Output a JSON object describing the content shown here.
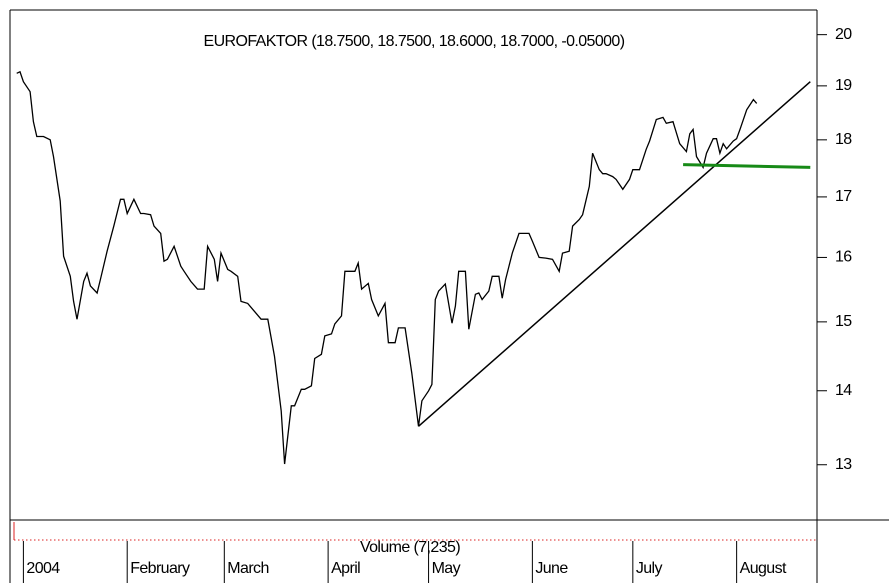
{
  "chart_data": {
    "type": "line",
    "title": "EUROFAKTOR (18.7500, 18.7500, 18.6000, 18.7000, -0.05000)",
    "color": "#000000",
    "log_scale": true,
    "x": [
      -2,
      -1,
      0,
      2,
      3,
      4,
      6,
      8,
      9,
      11,
      12,
      14,
      15,
      16,
      18,
      19,
      20,
      22,
      23,
      25,
      27,
      29,
      30,
      31,
      33,
      35,
      36,
      38,
      39,
      41,
      42,
      43,
      45,
      47,
      48,
      50,
      52,
      54,
      55,
      57,
      58,
      59,
      61,
      62,
      64,
      65,
      67,
      69,
      71,
      73,
      75,
      77,
      78,
      80,
      81,
      83,
      84,
      86,
      87,
      89,
      90,
      92,
      93,
      95,
      96,
      98,
      99,
      100,
      101,
      103,
      104,
      106,
      108,
      109,
      111,
      112,
      114,
      116,
      118,
      119,
      121,
      122,
      123,
      124,
      126,
      128,
      129,
      130,
      132,
      133,
      135,
      136,
      137,
      139,
      140,
      142,
      143,
      144,
      146,
      148,
      149,
      151,
      152,
      154,
      156,
      158,
      160,
      161,
      163,
      164,
      166,
      167,
      169,
      170,
      172,
      173,
      174,
      176,
      177,
      179,
      181,
      182,
      184,
      186,
      187,
      189,
      191,
      192,
      194,
      196,
      198,
      199,
      200,
      201,
      203,
      204,
      206,
      207,
      208,
      209,
      210,
      212,
      213,
      214,
      216,
      218,
      219
    ],
    "values": [
      19.24,
      19.27,
      19.08,
      18.89,
      18.33,
      18.06,
      18.06,
      18.0,
      17.7,
      16.93,
      16.02,
      15.7,
      15.31,
      15.04,
      15.62,
      15.75,
      15.55,
      15.44,
      15.65,
      16.1,
      16.51,
      16.96,
      16.96,
      16.72,
      16.96,
      16.72,
      16.72,
      16.7,
      16.51,
      16.39,
      15.94,
      15.97,
      16.18,
      15.86,
      15.78,
      15.62,
      15.5,
      15.5,
      16.18,
      15.97,
      15.62,
      16.07,
      15.81,
      15.78,
      15.7,
      15.31,
      15.28,
      15.16,
      15.04,
      15.04,
      14.49,
      13.72,
      13.01,
      13.79,
      13.79,
      14.02,
      14.02,
      14.07,
      14.46,
      14.52,
      14.79,
      14.82,
      14.97,
      15.09,
      15.78,
      15.78,
      15.78,
      15.91,
      15.5,
      15.59,
      15.34,
      15.09,
      15.28,
      14.69,
      14.69,
      14.91,
      14.91,
      14.25,
      13.51,
      13.86,
      14.0,
      14.09,
      15.34,
      15.47,
      15.58,
      14.98,
      15.24,
      15.78,
      15.78,
      14.89,
      15.42,
      15.44,
      15.34,
      15.47,
      15.7,
      15.7,
      15.36,
      15.65,
      16.07,
      16.39,
      16.39,
      16.39,
      16.26,
      16.0,
      15.99,
      15.97,
      15.78,
      16.07,
      16.1,
      16.51,
      16.62,
      16.7,
      17.18,
      17.76,
      17.47,
      17.4,
      17.4,
      17.35,
      17.3,
      17.13,
      17.3,
      17.47,
      17.47,
      17.83,
      17.98,
      18.37,
      18.41,
      18.3,
      18.33,
      17.93,
      17.79,
      18.11,
      18.19,
      17.7,
      17.51,
      17.76,
      18.02,
      18.02,
      17.76,
      17.93,
      17.84,
      17.98,
      18.02,
      18.19,
      18.55,
      18.74,
      18.67
    ],
    "trend_lines": [
      {
        "color": "#000000",
        "x": [
          118,
          235
        ],
        "values": [
          13.51,
          19.08
        ]
      },
      {
        "color": "#178a17",
        "x": [
          197,
          235
        ],
        "values": [
          17.56,
          17.51
        ]
      }
    ],
    "xlim": [
      -4,
      237
    ],
    "xticks": [
      {
        "value": 0,
        "label": "2004"
      },
      {
        "value": 31,
        "label": "February"
      },
      {
        "value": 60,
        "label": "March"
      },
      {
        "value": 91,
        "label": "April"
      },
      {
        "value": 121,
        "label": "May"
      },
      {
        "value": 152,
        "label": "June"
      },
      {
        "value": 182,
        "label": "July"
      },
      {
        "value": 213,
        "label": "August"
      }
    ],
    "ylim": [
      12.3,
      20.5
    ],
    "yticks": [
      13,
      14,
      15,
      16,
      17,
      18,
      19,
      20
    ],
    "volume_label": "Volume (7,235)"
  }
}
